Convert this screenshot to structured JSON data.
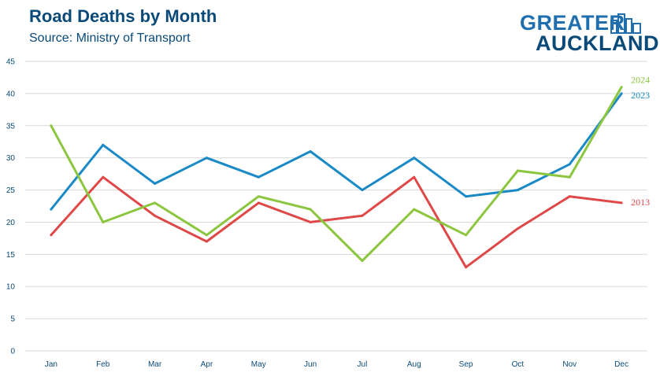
{
  "header": {
    "title": "Road Deaths by Month",
    "subtitle": "Source: Ministry of Transport"
  },
  "brand": {
    "line1": "GREATER",
    "line2": "AUCKLAND"
  },
  "colors": {
    "title": "#0a4a78",
    "grid": "#d9d9d9",
    "axis": "#0a4a78"
  },
  "chart_data": {
    "type": "line",
    "title": "Road Deaths by Month",
    "subtitle": "Source: Ministry of Transport",
    "xlabel": "",
    "ylabel": "",
    "categories": [
      "Jan",
      "Feb",
      "Mar",
      "Apr",
      "May",
      "Jun",
      "Jul",
      "Aug",
      "Sep",
      "Oct",
      "Nov",
      "Dec"
    ],
    "ylim": [
      0,
      45
    ],
    "yticks": [
      0,
      5,
      10,
      15,
      20,
      25,
      30,
      35,
      40,
      45
    ],
    "grid": true,
    "legend": "inline labels at right end of lines",
    "series": [
      {
        "name": "2013",
        "color": "#e04848",
        "values": [
          18,
          27,
          21,
          17,
          23,
          20,
          21,
          27,
          13,
          19,
          24,
          23
        ]
      },
      {
        "name": "2023",
        "color": "#1a8ac7",
        "values": [
          22,
          32,
          26,
          30,
          27,
          31,
          25,
          30,
          24,
          25,
          29,
          40
        ]
      },
      {
        "name": "2024",
        "color": "#8cc63f",
        "values": [
          35,
          20,
          23,
          18,
          24,
          22,
          14,
          22,
          18,
          28,
          27,
          41
        ]
      }
    ]
  }
}
